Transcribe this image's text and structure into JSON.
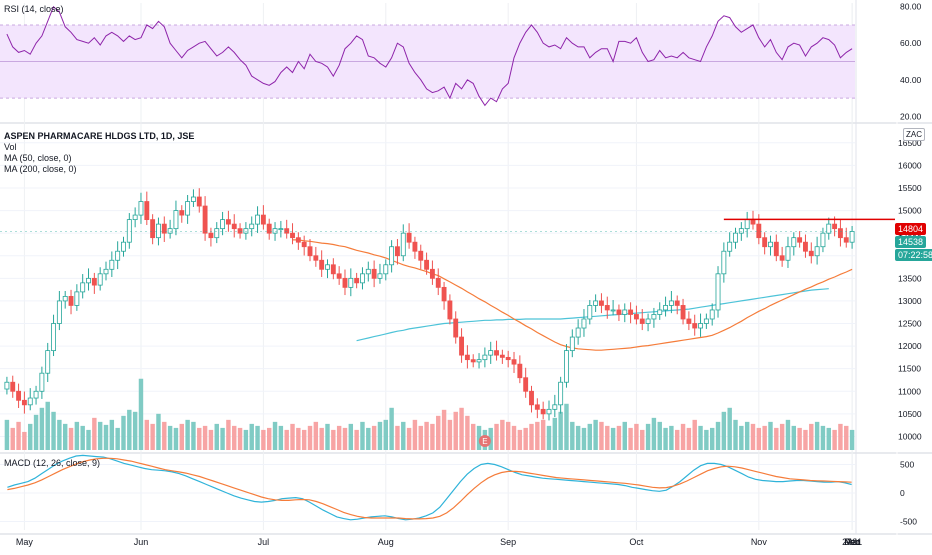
{
  "chart": {
    "title_line": "ASPEN PHARMACARE HLDGS LTD, 1D, JSE",
    "indicator_labels": [
      "Vol",
      "MA (50, close, 0)",
      "MA (200, close, 0)"
    ],
    "rsi_label": "RSI (14, close)",
    "macd_label": "MACD (12, 26, close, 9)",
    "currency_badge": "ZAC",
    "resistance_badge": "14804",
    "last_price_badge": "14538",
    "countdown_badge": "07:22:58",
    "earnings_marker": "E"
  },
  "colors": {
    "up": "#26a69a",
    "down": "#ef5350",
    "vol_up": "#80cbc4",
    "vol_down": "#f7a4a4",
    "ma50": "#f57c3a",
    "ma200": "#4dc3d8",
    "rsi_line": "#8e24aa",
    "rsi_band": "#f3e5fd",
    "macd_line": "#2fb3d9",
    "signal_line": "#f57c3a",
    "resistance": "#e00000"
  },
  "chart_data": [
    {
      "type": "line",
      "panel": "RSI",
      "ylim": [
        18,
        82
      ],
      "yticks": [
        20,
        40,
        60,
        80
      ],
      "y_tick_labels": [
        "20.00",
        "40.00",
        "60.00",
        "80.00"
      ],
      "band": [
        30,
        70
      ],
      "values": [
        65,
        58,
        55,
        56,
        54,
        60,
        64,
        72,
        80,
        77,
        69,
        66,
        62,
        61,
        60,
        63,
        59,
        64,
        66,
        64,
        61,
        64,
        62,
        63,
        70,
        68,
        72,
        69,
        60,
        56,
        52,
        56,
        58,
        60,
        61,
        57,
        53,
        55,
        58,
        55,
        51,
        48,
        42,
        40,
        38,
        37,
        39,
        44,
        47,
        44,
        50,
        46,
        54,
        50,
        49,
        47,
        42,
        48,
        57,
        60,
        64,
        62,
        53,
        52,
        49,
        47,
        52,
        60,
        58,
        49,
        44,
        40,
        35,
        33,
        34,
        36,
        30,
        38,
        35,
        40,
        38,
        31,
        26,
        30,
        28,
        35,
        38,
        52,
        60,
        66,
        70,
        66,
        60,
        58,
        59,
        57,
        63,
        60,
        58,
        58,
        52,
        55,
        57,
        57,
        50,
        61,
        61,
        60,
        63,
        55,
        50,
        51,
        56,
        52,
        53,
        52,
        55,
        52,
        51,
        50,
        58,
        64,
        72,
        75,
        74,
        69,
        66,
        68,
        70,
        63,
        58,
        62,
        55,
        51,
        58,
        60,
        59,
        53,
        58,
        60,
        63,
        62,
        59,
        52,
        55,
        57
      ]
    },
    {
      "type": "candlestick",
      "panel": "price",
      "ylim": [
        9700,
        16850
      ],
      "yticks": [
        10000,
        10500,
        11000,
        11500,
        12000,
        12500,
        13000,
        13500,
        14000,
        14500,
        15000,
        15500,
        16000,
        16500
      ],
      "y_tick_labels": [
        "10000",
        "10500",
        "11000",
        "11500",
        "12000",
        "12500",
        "13000",
        "13500",
        "14000",
        "14500",
        "15000",
        "15500",
        "16000",
        "16500"
      ],
      "x_tick_labels": [
        "May",
        "Jun",
        "Jul",
        "Aug",
        "Sep",
        "Oct",
        "Nov",
        "Dec",
        "2021",
        "Feb",
        "Mar"
      ],
      "resistance": 14804,
      "last_price": 14538,
      "close": [
        11200,
        11000,
        10800,
        10700,
        10850,
        11000,
        11400,
        11900,
        12500,
        13000,
        13100,
        12900,
        13200,
        13400,
        13500,
        13350,
        13600,
        13700,
        13900,
        14100,
        14300,
        14800,
        14900,
        15200,
        14800,
        14400,
        14700,
        14500,
        14600,
        15000,
        14900,
        15200,
        15300,
        15100,
        14500,
        14400,
        14600,
        14800,
        14700,
        14600,
        14500,
        14600,
        14700,
        14900,
        14700,
        14500,
        14600,
        14600,
        14500,
        14400,
        14300,
        14200,
        14000,
        13900,
        13700,
        13800,
        13600,
        13500,
        13300,
        13500,
        13400,
        13600,
        13700,
        13500,
        13600,
        13800,
        14200,
        14000,
        14500,
        14300,
        14100,
        13900,
        13700,
        13500,
        13300,
        13000,
        12600,
        12200,
        11800,
        11700,
        11650,
        11700,
        11800,
        11900,
        11800,
        11750,
        11700,
        11600,
        11300,
        11000,
        10700,
        10600,
        10500,
        10600,
        10700,
        11200,
        11900,
        12200,
        12400,
        12600,
        12900,
        13000,
        12900,
        12800,
        12800,
        12700,
        12800,
        12700,
        12600,
        12500,
        12600,
        12700,
        12800,
        12900,
        13000,
        12900,
        12600,
        12500,
        12400,
        12500,
        12600,
        12800,
        13600,
        14100,
        14300,
        14500,
        14600,
        14800,
        14700,
        14400,
        14200,
        14300,
        14000,
        13900,
        14200,
        14400,
        14300,
        14100,
        14000,
        14200,
        14500,
        14700,
        14600,
        14400,
        14300,
        14538
      ],
      "ma50": [
        null,
        null,
        null,
        null,
        null,
        null,
        null,
        null,
        null,
        null,
        null,
        null,
        null,
        null,
        null,
        null,
        null,
        null,
        null,
        null,
        null,
        null,
        null,
        null,
        null,
        null,
        null,
        null,
        null,
        null,
        null,
        null,
        null,
        null,
        null,
        null,
        null,
        null,
        null,
        null,
        null,
        null,
        null,
        null,
        null,
        null,
        null,
        null,
        null,
        14350,
        14350,
        14330,
        14320,
        14300,
        14280,
        14270,
        14250,
        14220,
        14200,
        14160,
        14120,
        14090,
        14060,
        14020,
        13990,
        13950,
        13900,
        13850,
        13800,
        13760,
        13730,
        13690,
        13650,
        13600,
        13560,
        13490,
        13420,
        13350,
        13280,
        13200,
        13130,
        13050,
        12980,
        12900,
        12830,
        12750,
        12680,
        12600,
        12530,
        12450,
        12380,
        12300,
        12230,
        12160,
        12090,
        12030,
        11990,
        11960,
        11940,
        11930,
        11920,
        11910,
        11910,
        11920,
        11930,
        11940,
        11950,
        11960,
        11980,
        12000,
        12010,
        12030,
        12050,
        12070,
        12090,
        12110,
        12130,
        12150,
        12170,
        12190,
        12210,
        12240,
        12290,
        12350,
        12410,
        12480,
        12550,
        12630,
        12700,
        12770,
        12830,
        12900,
        12960,
        13020,
        13080,
        13140,
        13200,
        13260,
        13310,
        13370,
        13420,
        13480,
        13530,
        13590,
        13640,
        13700
      ],
      "ma200": [
        null,
        null,
        null,
        null,
        null,
        null,
        null,
        null,
        null,
        null,
        null,
        null,
        null,
        null,
        null,
        null,
        null,
        null,
        null,
        null,
        null,
        null,
        null,
        null,
        null,
        null,
        null,
        null,
        null,
        null,
        null,
        null,
        null,
        null,
        null,
        null,
        null,
        null,
        null,
        null,
        null,
        null,
        null,
        null,
        null,
        null,
        null,
        null,
        null,
        null,
        null,
        null,
        null,
        null,
        null,
        null,
        null,
        null,
        null,
        null,
        12120,
        12150,
        12180,
        12210,
        12240,
        12270,
        12300,
        12330,
        12350,
        12380,
        12400,
        12420,
        12440,
        12460,
        12480,
        12500,
        12510,
        12520,
        12530,
        12540,
        12550,
        12560,
        12570,
        12570,
        12580,
        12580,
        12590,
        12590,
        12590,
        12600,
        12600,
        12600,
        12600,
        12600,
        12600,
        12600,
        12610,
        12620,
        12630,
        12640,
        12650,
        12660,
        12670,
        12680,
        12690,
        12700,
        12710,
        12720,
        12730,
        12740,
        12750,
        12760,
        12770,
        12780,
        12790,
        12800,
        12810,
        12820,
        12840,
        12860,
        12880,
        12900,
        12920,
        12940,
        12960,
        12980,
        13000,
        13020,
        13040,
        13060,
        13080,
        13100,
        13120,
        13140,
        13160,
        13180,
        13200,
        13220,
        13240,
        13250,
        13260,
        13270
      ]
    },
    {
      "type": "bar",
      "panel": "volume",
      "values": [
        30,
        22,
        28,
        18,
        26,
        35,
        42,
        48,
        38,
        30,
        26,
        22,
        28,
        24,
        20,
        32,
        28,
        25,
        30,
        22,
        34,
        40,
        38,
        52,
        30,
        26,
        36,
        28,
        24,
        22,
        26,
        30,
        28,
        22,
        24,
        20,
        26,
        22,
        30,
        24,
        22,
        20,
        26,
        24,
        20,
        22,
        28,
        24,
        20,
        26,
        22,
        20,
        24,
        28,
        22,
        26,
        20,
        24,
        22,
        26,
        20,
        28,
        22,
        24,
        28,
        30,
        42,
        24,
        28,
        22,
        30,
        24,
        28,
        26,
        34,
        40,
        30,
        38,
        42,
        34,
        26,
        24,
        20,
        22,
        26,
        30,
        28,
        24,
        20,
        22,
        26,
        28,
        30,
        24,
        32,
        38,
        46,
        28,
        24,
        22,
        26,
        30,
        28,
        24,
        22,
        24,
        28,
        22,
        26,
        20,
        26,
        32,
        28,
        22,
        24,
        20,
        26,
        22,
        30,
        24,
        20,
        22,
        28,
        38,
        42,
        30,
        24,
        28,
        26,
        22,
        24,
        28,
        22,
        26,
        30,
        24,
        22,
        20,
        26,
        28,
        24,
        22,
        20,
        26,
        24,
        20
      ]
    },
    {
      "type": "line",
      "panel": "MACD",
      "ylim": [
        -650,
        650
      ],
      "yticks": [
        -500,
        0,
        500
      ],
      "y_tick_labels": [
        "-500",
        "0",
        "500"
      ],
      "macd": [
        100,
        140,
        170,
        200,
        260,
        340,
        420,
        500,
        560,
        610,
        650,
        660,
        650,
        640,
        630,
        600,
        560,
        520,
        490,
        460,
        430,
        410,
        400,
        390,
        370,
        340,
        300,
        250,
        200,
        150,
        100,
        50,
        0,
        -50,
        -90,
        -120,
        -150,
        -160,
        -150,
        -130,
        -100,
        -90,
        -80,
        -100,
        -160,
        -230,
        -300,
        -360,
        -420,
        -450,
        -470,
        -460,
        -440,
        -420,
        -410,
        -400,
        -420,
        -450,
        -470,
        -460,
        -440,
        -400,
        -350,
        -250,
        -100,
        50,
        200,
        330,
        430,
        500,
        520,
        500,
        460,
        410,
        360,
        320,
        300,
        280,
        260,
        250,
        240,
        230,
        220,
        210,
        200,
        190,
        180,
        170,
        160,
        150,
        130,
        100,
        80,
        60,
        40,
        30,
        50,
        120,
        200,
        300,
        400,
        480,
        520,
        520,
        500,
        460,
        400,
        340,
        280,
        240,
        220,
        210,
        200,
        200,
        210,
        220,
        220,
        210,
        200,
        190,
        190,
        200,
        180,
        150
      ]
    },
    {
      "type": "line",
      "panel": "MACD-signal",
      "values": [
        60,
        80,
        110,
        140,
        180,
        230,
        290,
        350,
        410,
        460,
        510,
        550,
        580,
        600,
        610,
        610,
        600,
        580,
        560,
        530,
        500,
        470,
        440,
        410,
        390,
        370,
        350,
        320,
        290,
        250,
        210,
        170,
        130,
        90,
        50,
        10,
        -30,
        -70,
        -100,
        -120,
        -130,
        -130,
        -120,
        -115,
        -120,
        -150,
        -190,
        -240,
        -290,
        -340,
        -380,
        -410,
        -430,
        -440,
        -440,
        -440,
        -440,
        -440,
        -450,
        -455,
        -455,
        -450,
        -440,
        -410,
        -350,
        -260,
        -150,
        -30,
        80,
        180,
        260,
        320,
        360,
        380,
        380,
        370,
        350,
        330,
        310,
        290,
        270,
        260,
        250,
        240,
        230,
        220,
        210,
        200,
        190,
        180,
        170,
        155,
        140,
        120,
        100,
        90,
        95,
        120,
        160,
        210,
        270,
        330,
        390,
        430,
        460,
        470,
        460,
        440,
        410,
        380,
        350,
        320,
        290,
        270,
        250,
        240,
        230,
        220,
        215,
        210,
        205,
        200,
        195,
        190
      ]
    }
  ]
}
